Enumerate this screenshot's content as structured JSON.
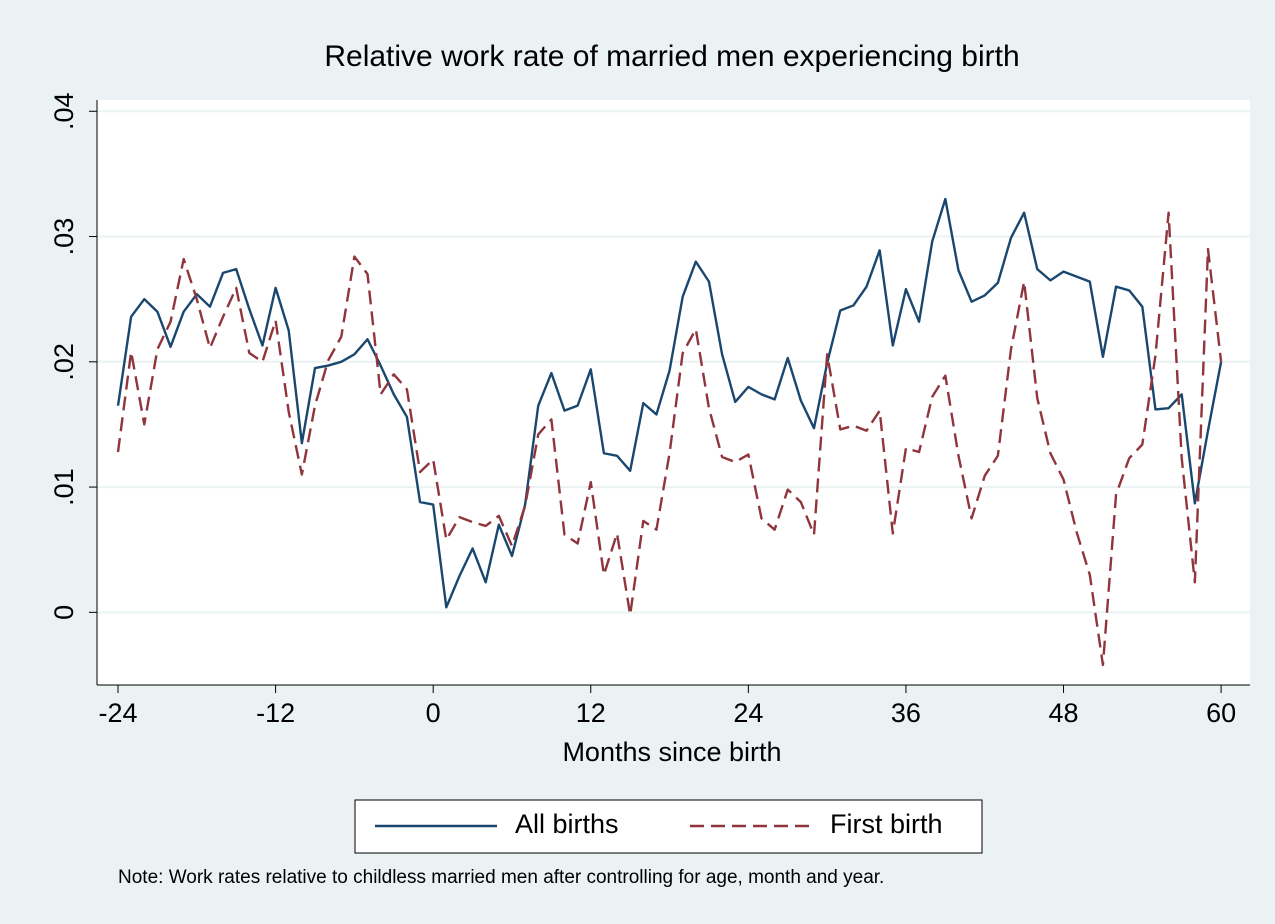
{
  "chart_data": {
    "type": "line",
    "title": "Relative work rate of married men experiencing birth",
    "xlabel": "Months since birth",
    "note": "Note: Work rates relative to childless married men after controlling for age, month and year.",
    "x": [
      -24,
      -23,
      -22,
      -21,
      -20,
      -19,
      -18,
      -17,
      -16,
      -15,
      -14,
      -13,
      -12,
      -11,
      -10,
      -9,
      -8,
      -7,
      -6,
      -5,
      -4,
      -3,
      -2,
      -1,
      0,
      1,
      2,
      3,
      4,
      5,
      6,
      7,
      8,
      9,
      10,
      11,
      12,
      13,
      14,
      15,
      16,
      17,
      18,
      19,
      20,
      21,
      22,
      23,
      24,
      25,
      26,
      27,
      28,
      29,
      30,
      31,
      32,
      33,
      34,
      35,
      36,
      37,
      38,
      39,
      40,
      41,
      42,
      43,
      44,
      45,
      46,
      47,
      48,
      49,
      50,
      51,
      52,
      53,
      54,
      55,
      56,
      57,
      58,
      59,
      60
    ],
    "series": [
      {
        "name": "All births",
        "color": "#1a476f",
        "dash": false,
        "values": [
          0.0165,
          0.0236,
          0.025,
          0.024,
          0.0212,
          0.024,
          0.0254,
          0.0244,
          0.0271,
          0.0274,
          0.0242,
          0.0213,
          0.0259,
          0.0225,
          0.0135,
          0.0195,
          0.0197,
          0.02,
          0.0206,
          0.0218,
          0.0197,
          0.0174,
          0.0156,
          0.0088,
          0.0086,
          0.0004,
          0.0029,
          0.0051,
          0.0024,
          0.007,
          0.0045,
          0.0086,
          0.0165,
          0.0191,
          0.0161,
          0.0165,
          0.0194,
          0.0127,
          0.0125,
          0.0113,
          0.0167,
          0.0158,
          0.0193,
          0.0252,
          0.028,
          0.0264,
          0.0206,
          0.0168,
          0.018,
          0.0174,
          0.017,
          0.0203,
          0.0169,
          0.0147,
          0.0199,
          0.0241,
          0.0245,
          0.026,
          0.0289,
          0.0213,
          0.0258,
          0.0232,
          0.0296,
          0.033,
          0.0273,
          0.0248,
          0.0253,
          0.0263,
          0.0299,
          0.0319,
          0.0274,
          0.0265,
          0.0272,
          0.0268,
          0.0264,
          0.0204,
          0.026,
          0.0257,
          0.0244,
          0.0162,
          0.0163,
          0.0174,
          0.0087,
          0.0145,
          0.02
        ]
      },
      {
        "name": "First birth",
        "color": "#90353b",
        "dash": true,
        "values": [
          0.0128,
          0.0208,
          0.015,
          0.021,
          0.0232,
          0.0282,
          0.025,
          0.0211,
          0.0236,
          0.0259,
          0.0207,
          0.02,
          0.0233,
          0.016,
          0.011,
          0.0165,
          0.0201,
          0.022,
          0.0284,
          0.027,
          0.0174,
          0.019,
          0.0178,
          0.0112,
          0.0122,
          0.0058,
          0.0076,
          0.0072,
          0.0069,
          0.0077,
          0.0053,
          0.0085,
          0.0142,
          0.0154,
          0.0062,
          0.0055,
          0.0104,
          0.003,
          0.0063,
          -0.0002,
          0.0073,
          0.0066,
          0.0127,
          0.0207,
          0.0226,
          0.0163,
          0.0124,
          0.012,
          0.0126,
          0.0075,
          0.0066,
          0.0098,
          0.0088,
          0.0062,
          0.0206,
          0.0146,
          0.0149,
          0.0145,
          0.0161,
          0.0063,
          0.0131,
          0.0128,
          0.0172,
          0.0189,
          0.0125,
          0.0075,
          0.0109,
          0.0125,
          0.021,
          0.0264,
          0.0171,
          0.0127,
          0.0106,
          0.0064,
          0.003,
          -0.0042,
          0.0094,
          0.0123,
          0.0134,
          0.0205,
          0.0319,
          0.0123,
          0.0024,
          0.029,
          0.02
        ]
      }
    ],
    "xlim": [
      -25.6,
      62.2
    ],
    "xticks": [
      -24,
      -12,
      0,
      12,
      24,
      36,
      48,
      60
    ],
    "ylim": [
      -0.0058,
      0.0409
    ],
    "yticks": [
      0,
      {
        "value": 0.01,
        "label": ".01"
      },
      {
        "value": 0.02,
        "label": ".02"
      },
      {
        "value": 0.03,
        "label": ".03"
      },
      {
        "value": 0.04,
        "label": ".04"
      }
    ],
    "grid": true,
    "legend": "bottom"
  }
}
